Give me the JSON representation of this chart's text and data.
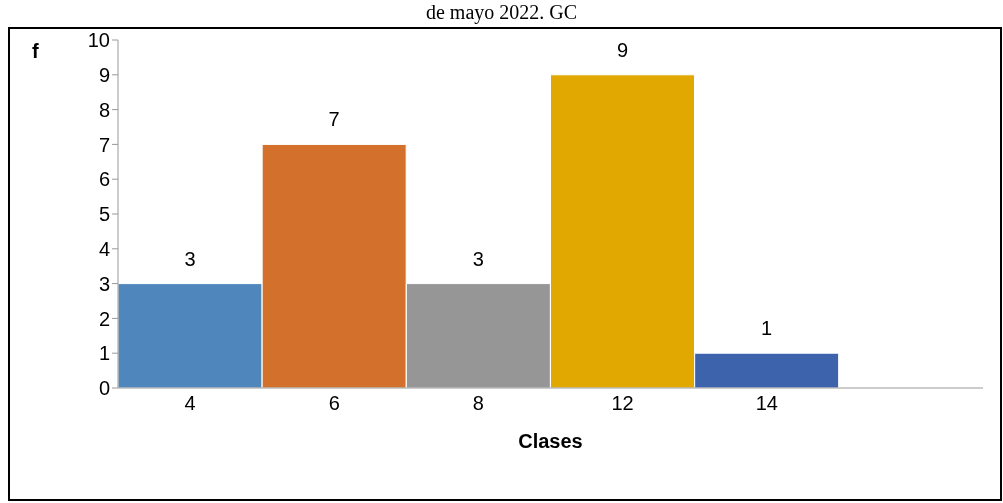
{
  "chart_data": {
    "type": "bar",
    "title": "de mayo 2022. GC",
    "xlabel": "Clases",
    "ylabel": "f",
    "categories": [
      "4",
      "6",
      "8",
      "12",
      "14",
      null
    ],
    "values": [
      3,
      7,
      3,
      9,
      1,
      null
    ],
    "colors": [
      "#4f87bd",
      "#d2702c",
      "#969696",
      "#e0a800",
      "#3e63ad",
      "#000000"
    ],
    "ylim": [
      0,
      10
    ],
    "yticks": [
      0,
      1,
      2,
      3,
      4,
      5,
      6,
      7,
      8,
      9,
      10
    ],
    "grid": false,
    "data_labels": true
  }
}
